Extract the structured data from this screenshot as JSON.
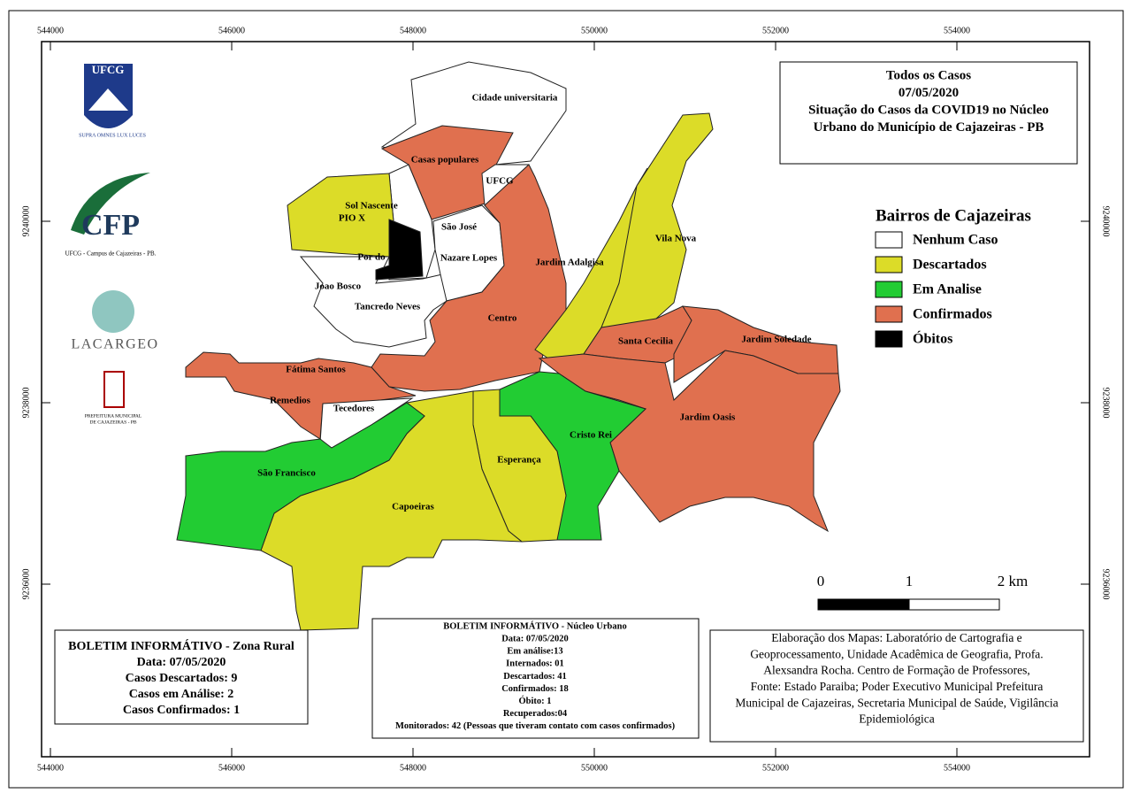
{
  "frame": {
    "x_ticks": [
      544000,
      546000,
      548000,
      550000,
      552000,
      554000
    ],
    "y_ticks": [
      9236000,
      9238000,
      9240000
    ]
  },
  "title_box": {
    "lines": [
      "Todos os Casos",
      "07/05/2020",
      "Situação do Casos da COVID19 no Núcleo",
      "Urbano do Município de Cajazeiras - PB"
    ]
  },
  "legend": {
    "title": "Bairros de Cajazeiras",
    "items": [
      "Nenhum Caso",
      "Descartados",
      "Em Analise",
      "Confirmados",
      "Óbitos"
    ]
  },
  "neighborhoods": [
    "Cidade universitaria",
    "Casas populares",
    "UFCG",
    "Sol Nascente",
    "PIO X",
    "São José",
    "Por do",
    "Nazare Lopes",
    "Jardim Adalgisa",
    "Vila Nova",
    "Joao Bosco",
    "Tancredo Neves",
    "Centro",
    "Santa Cecilia",
    "Jardim Soledade",
    "Fátima Santos",
    "Remedios",
    "Tecedores",
    "Jardim Oasis",
    "Cristo Rei",
    "São Francisco",
    "Esperança",
    "Capoeiras"
  ],
  "logos": {
    "ufcg": "UFCG",
    "ufcg_motto": "SUPRA OMNES LUX LUCES",
    "cfp": "CFP",
    "cfp_caption": "UFCG - Campus de Cajazeiras - PB.",
    "lacargeo": "LACARGEO",
    "prefeitura_1": "PREFEITURA MUNICIPAL",
    "prefeitura_2": "DE CAJAZEIRAS - PB"
  },
  "scale_bar": {
    "labels": [
      "0",
      "1",
      "2 km"
    ]
  },
  "rural_bulletin": {
    "lines": [
      "BOLETIM INFORMÁTIVO - Zona Rural",
      "Data: 07/05/2020",
      "Casos Descartados: 9",
      "Casos em Análise: 2",
      "Casos Confirmados: 1"
    ]
  },
  "urban_bulletin": {
    "lines": [
      "BOLETIM INFORMÁTIVO - Núcleo Urbano",
      "Data: 07/05/2020",
      "Em análise:13",
      "Internados: 01",
      "Descartados: 41",
      "Confirmados: 18",
      "Óbito: 1",
      "Recuperados:04",
      "Monitorados: 42 (Pessoas que tiveram contato com casos confirmados)"
    ]
  },
  "credits": {
    "lines": [
      "Elaboração dos Mapas: Laboratório de Cartografia e",
      "Geoprocessamento, Unidade Acadêmica de Geografia, Profa.",
      "Alexsandra Rocha. Centro de Formação de Professores,",
      "Fonte: Estado Paraiba; Poder Executivo Municipal Prefeitura",
      "Municipal de Cajazeiras, Secretaria Municipal de Saúde, Vigilância",
      "Epidemiológica"
    ]
  }
}
